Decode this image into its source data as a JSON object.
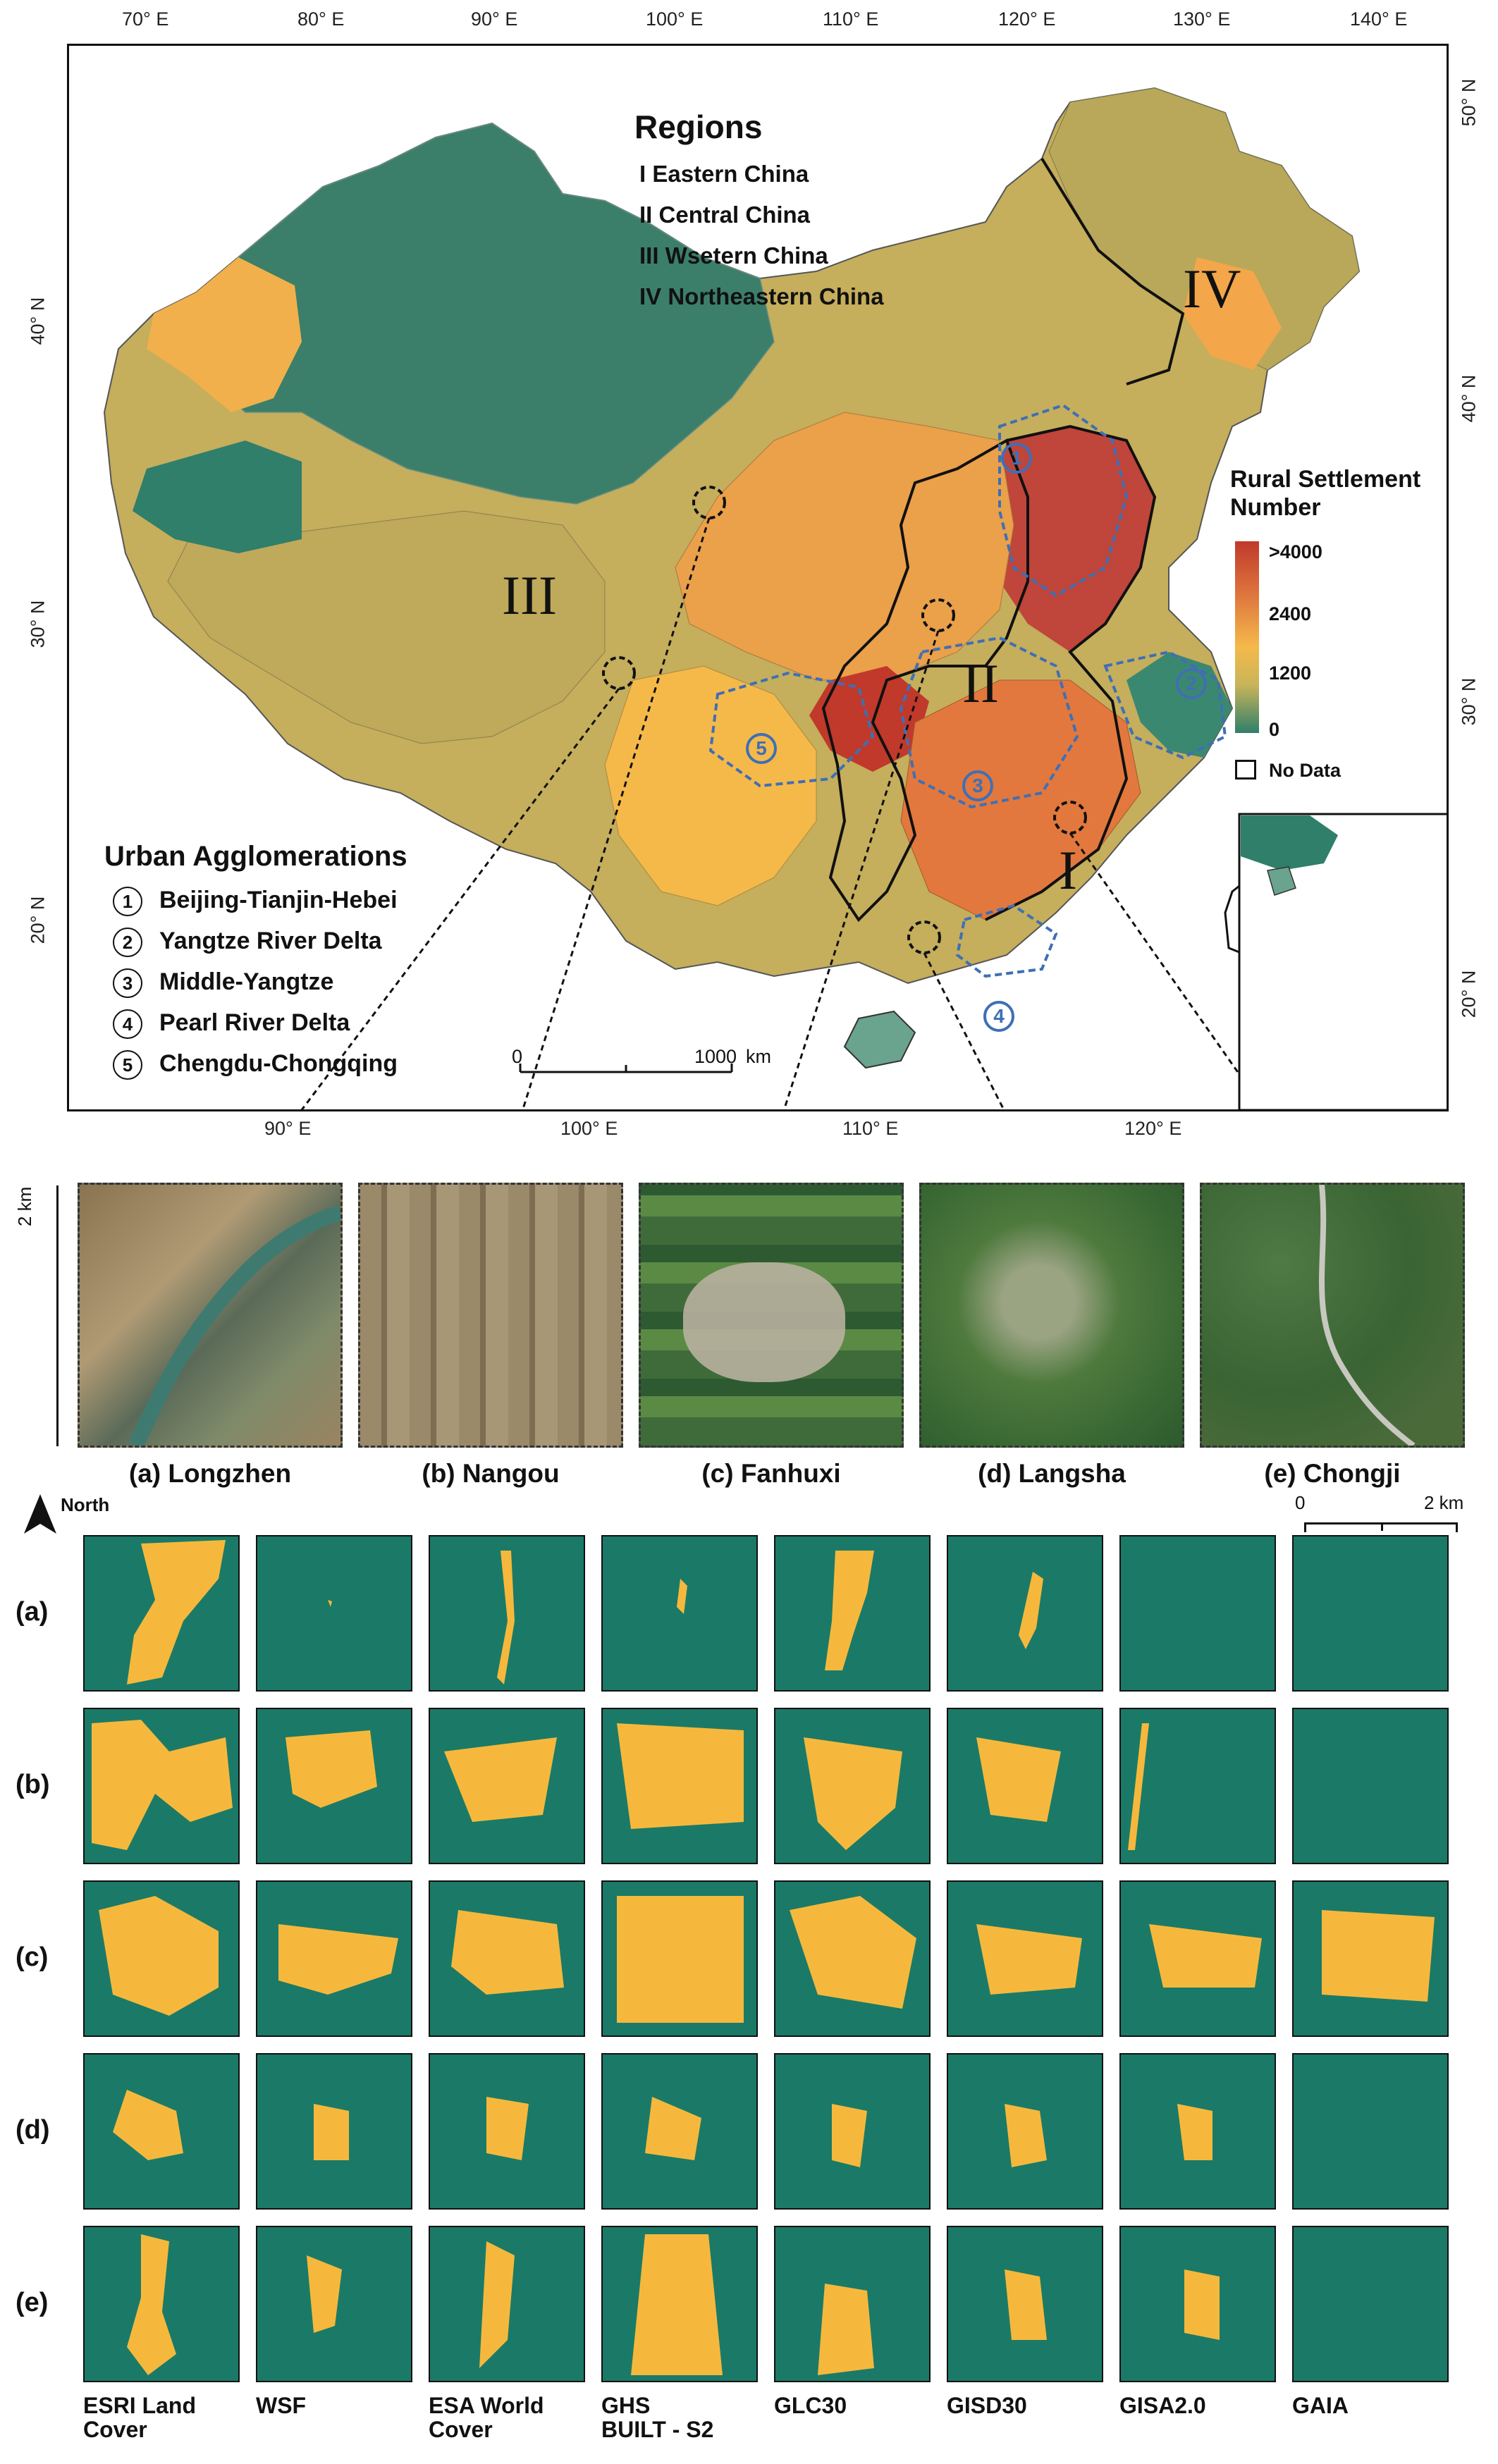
{
  "map": {
    "lon_ticks_top": [
      "70° E",
      "80° E",
      "90° E",
      "100° E",
      "110° E",
      "120° E",
      "130° E",
      "140° E"
    ],
    "lon_ticks_bottom": [
      "90° E",
      "100° E",
      "110° E",
      "120° E"
    ],
    "lat_ticks_left": [
      "40° N",
      "30° N",
      "20° N"
    ],
    "lat_ticks_right": [
      "50° N",
      "40° N",
      "30° N",
      "20° N"
    ],
    "inset_lat_tick": "20° N",
    "regions_title": "Regions",
    "regions": [
      "I   Eastern China",
      "II  Central China",
      "III Wsetern China",
      "IV Northeastern China"
    ],
    "region_labels": {
      "I": "I",
      "II": "II",
      "III": "III",
      "IV": "IV"
    },
    "urban_title": "Urban Agglomerations",
    "urban_agglomerations": [
      {
        "num": "1",
        "name": "Beijing-Tianjin-Hebei"
      },
      {
        "num": "2",
        "name": "Yangtze River Delta"
      },
      {
        "num": "3",
        "name": "Middle-Yangtze"
      },
      {
        "num": "4",
        "name": "Pearl River Delta"
      },
      {
        "num": "5",
        "name": "Chengdu-Chongqing"
      }
    ],
    "legend": {
      "title_line1": "Rural Settlement",
      "title_line2": "Number",
      "labels": [
        ">4000",
        "2400",
        "1200",
        "0"
      ],
      "no_data": "No Data",
      "colors": [
        "#c0392b",
        "#e07a3f",
        "#f5b94a",
        "#c8b45a",
        "#2f7f6a"
      ]
    },
    "scale_bar": {
      "start": "0",
      "end": "1000",
      "unit": "km"
    },
    "circle_numbers": [
      "1",
      "2",
      "3",
      "4",
      "5"
    ]
  },
  "photos": {
    "axis_label": "2 km",
    "captions": [
      "(a)  Longzhen",
      "(b) Nangou",
      "(c) Fanhuxi",
      "(d) Langsha",
      "(e) Chongji"
    ]
  },
  "grid": {
    "north_label": "North",
    "scale": {
      "start": "0",
      "end": "2 km"
    },
    "row_labels": [
      "(a)",
      "(b)",
      "(c)",
      "(d)",
      "(e)"
    ],
    "products": [
      {
        "line1": "ESRI Land",
        "line2": "Cover"
      },
      {
        "line1": "WSF",
        "line2": ""
      },
      {
        "line1": "ESA World",
        "line2": "Cover"
      },
      {
        "line1": "GHS",
        "line2": "BUILT - S2"
      },
      {
        "line1": "GLC30",
        "line2": ""
      },
      {
        "line1": "GISD30",
        "line2": ""
      },
      {
        "line1": "GISA2.0",
        "line2": ""
      },
      {
        "line1": "GAIA",
        "line2": ""
      }
    ],
    "colors": {
      "background": "#1a7a67",
      "settlement": "#f6b83c"
    }
  }
}
